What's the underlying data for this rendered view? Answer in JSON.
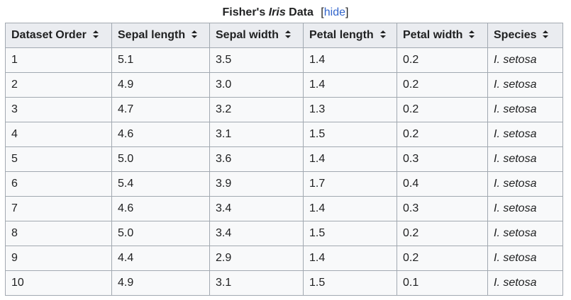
{
  "caption": {
    "prefix": "Fisher's ",
    "italic": "Iris",
    "suffix": " Data",
    "hide_bracket_open": "[",
    "hide_label": "hide",
    "hide_bracket_close": "]"
  },
  "table": {
    "headers": [
      "Dataset Order",
      "Sepal length",
      "Sepal width",
      "Petal length",
      "Petal width",
      "Species"
    ],
    "sort_icon": "sort-arrows-icon",
    "rows": [
      [
        "1",
        "5.1",
        "3.5",
        "1.4",
        "0.2",
        "I. setosa"
      ],
      [
        "2",
        "4.9",
        "3.0",
        "1.4",
        "0.2",
        "I. setosa"
      ],
      [
        "3",
        "4.7",
        "3.2",
        "1.3",
        "0.2",
        "I. setosa"
      ],
      [
        "4",
        "4.6",
        "3.1",
        "1.5",
        "0.2",
        "I. setosa"
      ],
      [
        "5",
        "5.0",
        "3.6",
        "1.4",
        "0.3",
        "I. setosa"
      ],
      [
        "6",
        "5.4",
        "3.9",
        "1.7",
        "0.4",
        "I. setosa"
      ],
      [
        "7",
        "4.6",
        "3.4",
        "1.4",
        "0.3",
        "I. setosa"
      ],
      [
        "8",
        "5.0",
        "3.4",
        "1.5",
        "0.2",
        "I. setosa"
      ],
      [
        "9",
        "4.4",
        "2.9",
        "1.4",
        "0.2",
        "I. setosa"
      ],
      [
        "10",
        "4.9",
        "3.1",
        "1.5",
        "0.1",
        "I. setosa"
      ]
    ]
  },
  "colors": {
    "header_bg": "#eaecf0",
    "cell_bg": "#f8f9fa",
    "border": "#a2a9b1",
    "link": "#3366cc",
    "text": "#202122"
  }
}
